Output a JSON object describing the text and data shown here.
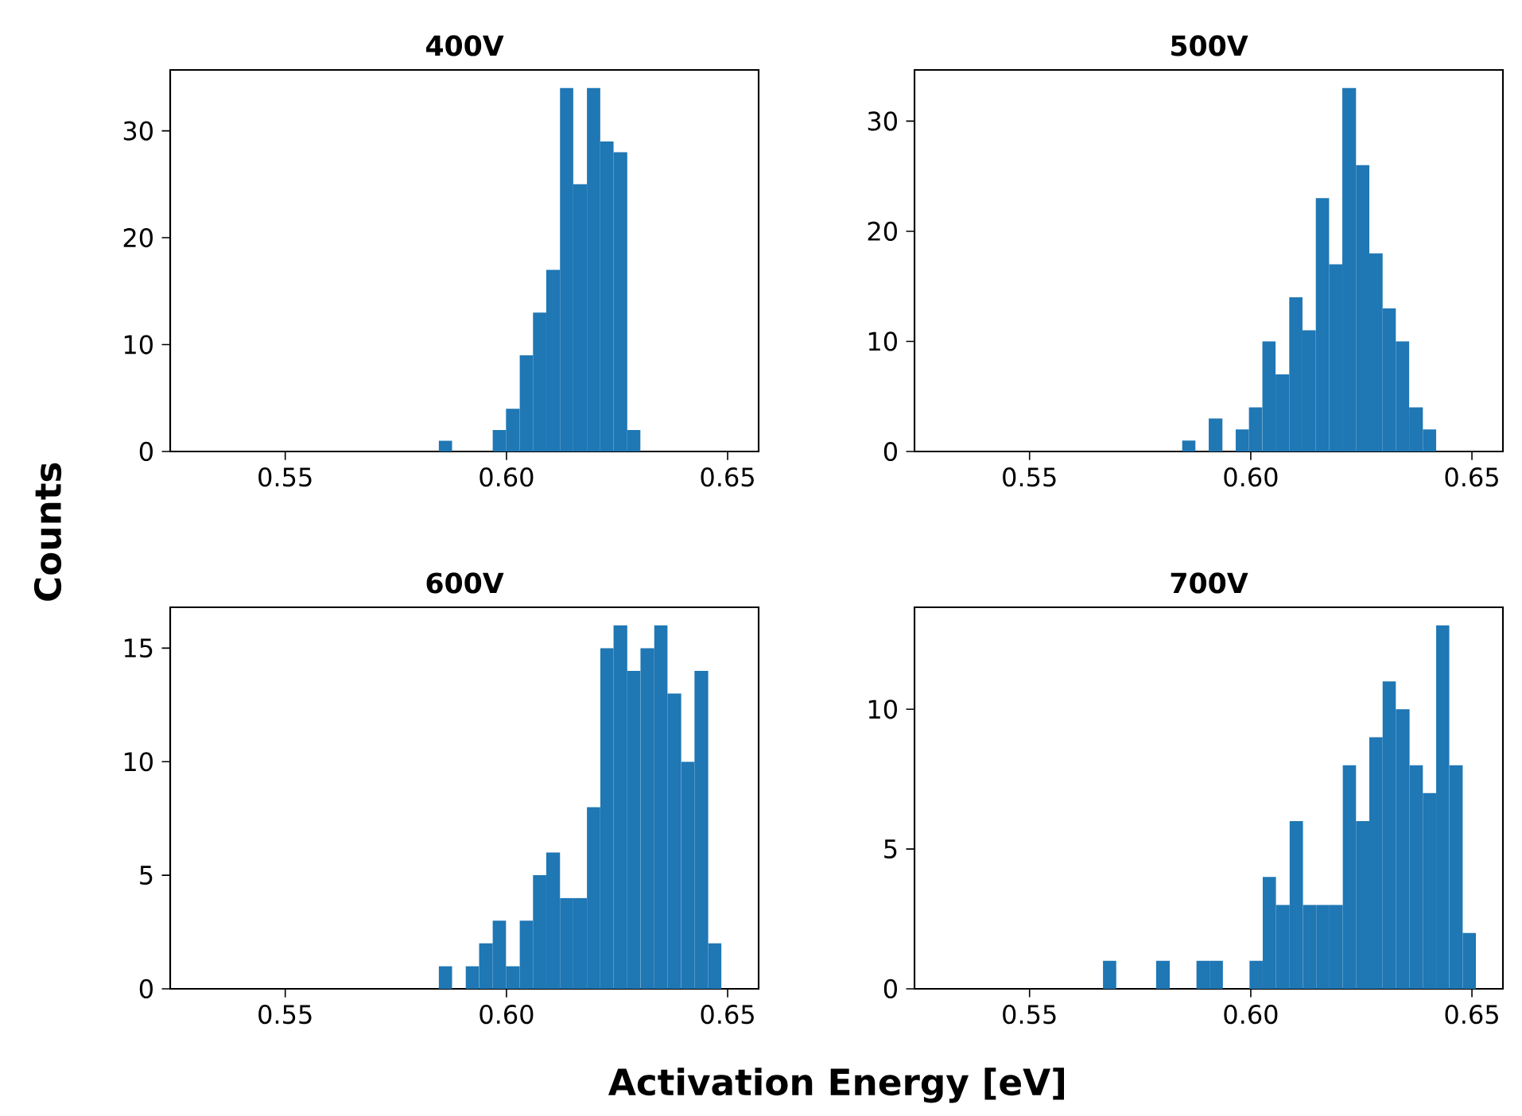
{
  "chart_data": [
    {
      "type": "histogram",
      "title": "400V",
      "ylabel": "Counts",
      "color": "#1f77b4",
      "bins": [
        0.5847,
        0.5877,
        0.5969,
        0.5999,
        0.603,
        0.606,
        0.609,
        0.6121,
        0.6151,
        0.6182,
        0.6212,
        0.6242,
        0.6273,
        0.6303
      ],
      "values": [
        1,
        0,
        2,
        4,
        9,
        13,
        17,
        34,
        25,
        34,
        29,
        28,
        2
      ],
      "xlim": [
        0.524,
        0.657
      ],
      "ylim": [
        0,
        35.7
      ],
      "xticks": [
        {
          "value": 0.55,
          "label": "0.55"
        },
        {
          "value": 0.6,
          "label": "0.60"
        },
        {
          "value": 0.65,
          "label": "0.65"
        }
      ],
      "yticks": [
        0,
        10,
        20,
        30
      ]
    },
    {
      "type": "histogram",
      "title": "500V",
      "color": "#1f77b4",
      "bins": [
        0.5845,
        0.5875,
        0.5905,
        0.5936,
        0.5966,
        0.5996,
        0.6026,
        0.6056,
        0.6087,
        0.6117,
        0.6147,
        0.6177,
        0.6207,
        0.6238,
        0.6268,
        0.6298,
        0.6328,
        0.6358,
        0.6389,
        0.6419
      ],
      "values": [
        1,
        0,
        3,
        0,
        2,
        4,
        10,
        7,
        14,
        11,
        23,
        17,
        33,
        26,
        18,
        13,
        10,
        4,
        2
      ],
      "xlim": [
        0.524,
        0.657
      ],
      "ylim": [
        0,
        34.65
      ],
      "xticks": [
        {
          "value": 0.55,
          "label": "0.55"
        },
        {
          "value": 0.6,
          "label": "0.60"
        },
        {
          "value": 0.65,
          "label": "0.65"
        }
      ],
      "yticks": [
        0,
        10,
        20,
        30
      ]
    },
    {
      "type": "histogram",
      "title": "600V",
      "xlabel": "Activation Energy [eV]",
      "color": "#1f77b4",
      "bins": [
        0.5847,
        0.5877,
        0.5908,
        0.5938,
        0.5969,
        0.5999,
        0.603,
        0.606,
        0.609,
        0.6121,
        0.6151,
        0.6182,
        0.6212,
        0.6242,
        0.6273,
        0.6303,
        0.6334,
        0.6364,
        0.6395,
        0.6425,
        0.6456,
        0.6486
      ],
      "values": [
        1,
        0,
        1,
        2,
        3,
        1,
        3,
        5,
        6,
        4,
        4,
        8,
        15,
        16,
        14,
        15,
        16,
        13,
        10,
        14,
        2
      ],
      "xlim": [
        0.524,
        0.657
      ],
      "ylim": [
        0,
        16.8
      ],
      "xticks": [
        {
          "value": 0.55,
          "label": "0.55"
        },
        {
          "value": 0.6,
          "label": "0.60"
        },
        {
          "value": 0.65,
          "label": "0.65"
        }
      ],
      "yticks": [
        0,
        5,
        10,
        15
      ]
    },
    {
      "type": "histogram",
      "title": "700V",
      "color": "#1f77b4",
      "bins": [
        0.5666,
        0.5696,
        0.5786,
        0.5817,
        0.5877,
        0.5907,
        0.5937,
        0.5997,
        0.6027,
        0.6057,
        0.6088,
        0.6118,
        0.6148,
        0.6178,
        0.6208,
        0.6238,
        0.6268,
        0.6298,
        0.6328,
        0.6359,
        0.6389,
        0.6419,
        0.6449,
        0.6479,
        0.6509
      ],
      "values": [
        1,
        0,
        1,
        0,
        1,
        1,
        0,
        1,
        4,
        3,
        6,
        3,
        3,
        3,
        8,
        6,
        9,
        11,
        10,
        8,
        7,
        13,
        8,
        2
      ],
      "xlim": [
        0.524,
        0.657
      ],
      "ylim": [
        0,
        13.65
      ],
      "xticks": [
        {
          "value": 0.55,
          "label": "0.55"
        },
        {
          "value": 0.6,
          "label": "0.60"
        },
        {
          "value": 0.65,
          "label": "0.65"
        }
      ],
      "yticks": [
        0,
        5,
        10
      ]
    }
  ]
}
